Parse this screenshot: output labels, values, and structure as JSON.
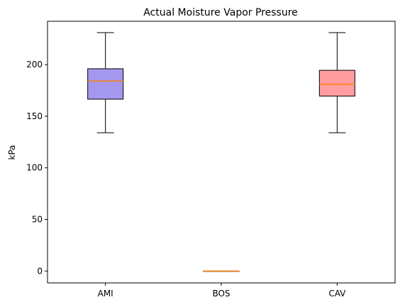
{
  "chart_data": {
    "type": "box",
    "title": "Actual Moisture Vapor Pressure",
    "xlabel": "",
    "ylabel": "kPa",
    "ylim": [
      -11.5,
      242
    ],
    "yticks": [
      0,
      50,
      100,
      150,
      200
    ],
    "grid": false,
    "categories": [
      "AMI",
      "BOS",
      "CAV"
    ],
    "boxes": [
      {
        "category": "AMI",
        "whisker_low": 134,
        "q1": 166.5,
        "median": 184,
        "q3": 196,
        "whisker_high": 231,
        "fill": "#a498ee"
      },
      {
        "category": "BOS",
        "whisker_low": 0,
        "q1": 0,
        "median": 0,
        "q3": 0,
        "whisker_high": 0,
        "fill": "#bbbbbb"
      },
      {
        "category": "CAV",
        "whisker_low": 134,
        "q1": 169.5,
        "median": 181,
        "q3": 194.5,
        "whisker_high": 231,
        "fill": "#ff9da0"
      }
    ],
    "median_color": "#ff7f0e"
  }
}
